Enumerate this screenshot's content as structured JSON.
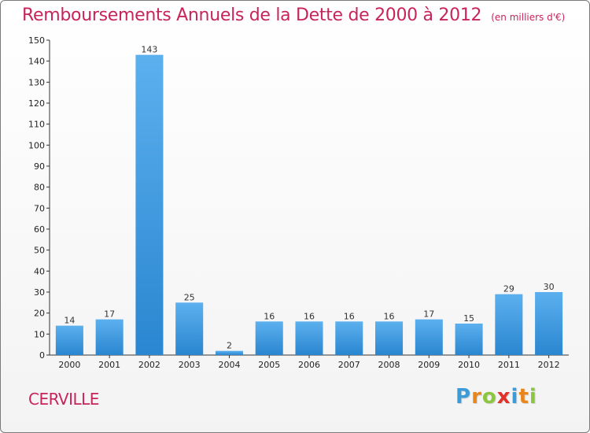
{
  "chart_data": {
    "type": "bar",
    "title": "Remboursements Annuels de la Dette de 2000 à 2012",
    "subtitle": "(en milliers d'€)",
    "xlabel": "",
    "ylabel": "",
    "categories": [
      "2000",
      "2001",
      "2002",
      "2003",
      "2004",
      "2005",
      "2006",
      "2007",
      "2008",
      "2009",
      "2010",
      "2011",
      "2012"
    ],
    "values": [
      14,
      17,
      143,
      25,
      2,
      16,
      16,
      16,
      16,
      17,
      15,
      29,
      30
    ],
    "data_labels": [
      "14",
      "17",
      "143",
      "25",
      "2",
      "16",
      "16",
      "16",
      "16",
      "17",
      "15",
      "29",
      "30"
    ],
    "ylim": [
      0,
      150
    ],
    "yticks": [
      0,
      10,
      20,
      30,
      40,
      50,
      60,
      70,
      80,
      90,
      100,
      110,
      120,
      130,
      140,
      150
    ],
    "grid": false,
    "legend": "none",
    "bar_color": "#2a86d0",
    "bar_color_light": "#5cb0ee"
  },
  "footer": {
    "commune": "CERVILLE",
    "logo_letters": [
      "P",
      "r",
      "o",
      "x",
      "i",
      "t",
      "i"
    ],
    "logo_colors": [
      "#3a9bd8",
      "#e8861c",
      "#8cc63f",
      "#e0322a",
      "#3a9bd8",
      "#e8861c",
      "#8cc63f"
    ]
  },
  "colors": {
    "title": "#c8245c",
    "axis": "#333333"
  }
}
